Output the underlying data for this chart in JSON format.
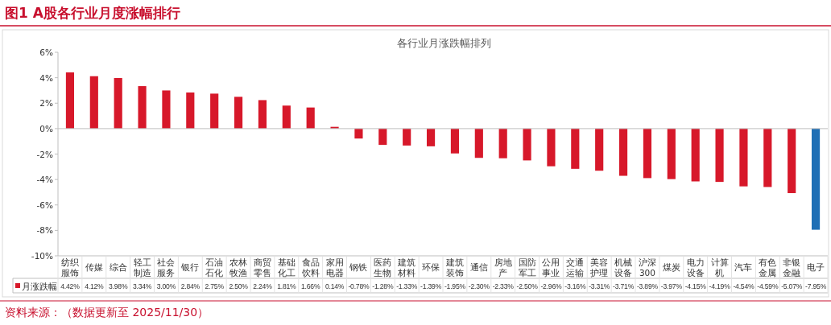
{
  "chart_data": {
    "type": "bar",
    "title": "图1  A股各行业月度涨幅排行",
    "subtitle": "各行业月涨跌幅排列",
    "categories": [
      "纺织服饰",
      "传媒",
      "综合",
      "轻工制造",
      "社会服务",
      "银行",
      "石油石化",
      "农林牧渔",
      "商贸零售",
      "基础化工",
      "食品饮料",
      "家用电器",
      "钢铁",
      "医药生物",
      "建筑材料",
      "环保",
      "建筑装饰",
      "通信",
      "房地产",
      "国防军工",
      "公用事业",
      "交通运输",
      "美容护理",
      "机械设备",
      "沪深300",
      "煤炭",
      "电力设备",
      "计算机",
      "汽车",
      "有色金属",
      "非银金融",
      "电子"
    ],
    "series": [
      {
        "name": "月涨跌幅",
        "color": "#d7182a",
        "values": [
          4.42,
          4.12,
          3.98,
          3.34,
          3.0,
          2.84,
          2.75,
          2.5,
          2.24,
          1.81,
          1.66,
          0.14,
          -0.78,
          -1.28,
          -1.33,
          -1.39,
          -1.95,
          -2.3,
          -2.33,
          -2.5,
          -2.96,
          -3.16,
          -3.31,
          -3.71,
          -3.89,
          -3.97,
          -4.15,
          -4.19,
          -4.54,
          -4.59,
          -5.07,
          -7.95
        ],
        "value_labels": [
          "4.42%",
          "4.12%",
          "3.98%",
          "3.34%",
          "3.00%",
          "2.84%",
          "2.75%",
          "2.50%",
          "2.24%",
          "1.81%",
          "1.66%",
          "0.14%",
          "-0.78%",
          "-1.28%",
          "-1.33%",
          "-1.39%",
          "-1.95%",
          "-2.30%",
          "-2.33%",
          "-2.50%",
          "-2.96%",
          "-3.16%",
          "-3.31%",
          "-3.71%",
          "-3.89%",
          "-3.97%",
          "-4.15%",
          "-4.19%",
          "-4.54%",
          "-4.59%",
          "-5.07%",
          "-7.95%"
        ],
        "colors": [
          "#d7182a",
          "#d7182a",
          "#d7182a",
          "#d7182a",
          "#d7182a",
          "#d7182a",
          "#d7182a",
          "#d7182a",
          "#d7182a",
          "#d7182a",
          "#d7182a",
          "#d7182a",
          "#d7182a",
          "#d7182a",
          "#d7182a",
          "#d7182a",
          "#d7182a",
          "#d7182a",
          "#d7182a",
          "#d7182a",
          "#d7182a",
          "#d7182a",
          "#d7182a",
          "#d7182a",
          "#d7182a",
          "#d7182a",
          "#d7182a",
          "#d7182a",
          "#d7182a",
          "#d7182a",
          "#d7182a",
          "#1f6fb5"
        ]
      }
    ],
    "ylim": [
      -10,
      6
    ],
    "yticks": [
      {
        "value": 6,
        "label": "6%"
      },
      {
        "value": 4,
        "label": "4%"
      },
      {
        "value": 2,
        "label": "2%"
      },
      {
        "value": 0,
        "label": "0%"
      },
      {
        "value": -2,
        "label": "-2%"
      },
      {
        "value": -4,
        "label": "-4%"
      },
      {
        "value": -6,
        "label": "-6%"
      },
      {
        "value": -8,
        "label": "-8%"
      },
      {
        "value": -10,
        "label": "-10%"
      }
    ],
    "legend": "bottom left",
    "annotations": [
      "资料来源：（数据更新至 2025/11/30）"
    ]
  }
}
